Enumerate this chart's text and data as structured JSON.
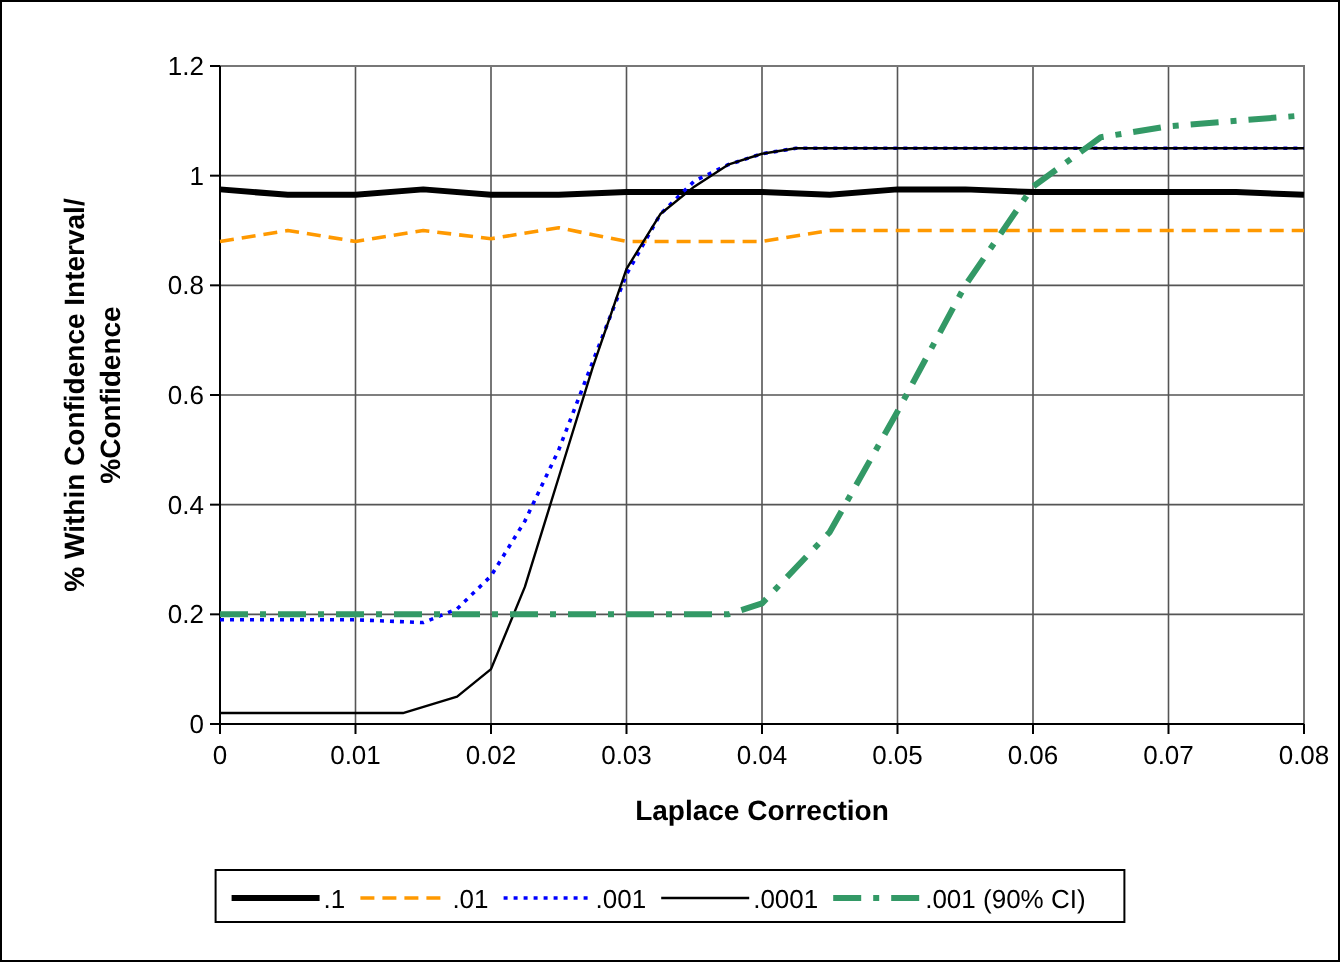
{
  "chart_data": {
    "type": "line",
    "xlabel": "Laplace Correction",
    "ylabel": "% Within Confidence Interval/ %Confidence",
    "xlim": [
      0,
      0.08
    ],
    "ylim": [
      0,
      1.2
    ],
    "xticks": [
      0,
      0.01,
      0.02,
      0.03,
      0.04,
      0.05,
      0.06,
      0.07,
      0.08
    ],
    "yticks": [
      0,
      0.2,
      0.4,
      0.6,
      0.8,
      1,
      1.2
    ],
    "grid": true,
    "legend": "bottom",
    "marker": "none",
    "x": [
      0,
      0.005,
      0.01,
      0.015,
      0.02,
      0.025,
      0.03,
      0.035,
      0.04,
      0.045,
      0.05,
      0.055,
      0.06,
      0.065,
      0.07,
      0.075,
      0.08
    ],
    "series": [
      {
        "name": ".1",
        "color": "#000000",
        "line_style": "solid",
        "values": [
          0.975,
          0.965,
          0.965,
          0.975,
          0.965,
          0.965,
          0.97,
          0.97,
          0.97,
          0.965,
          0.975,
          0.975,
          0.97,
          0.97,
          0.97,
          0.97,
          0.965
        ]
      },
      {
        "name": ".01",
        "color": "#ff9900",
        "line_style": "dashed",
        "values": [
          0.88,
          0.9,
          0.88,
          0.9,
          0.885,
          0.905,
          0.88,
          0.88,
          0.88,
          0.9,
          0.9,
          0.9,
          0.9,
          0.9,
          0.9,
          0.9,
          0.9
        ]
      },
      {
        "name": ".001",
        "color": "#0000ff",
        "line_style": "dotted",
        "x": [
          0,
          0.005,
          0.01,
          0.015,
          0.0175,
          0.02,
          0.0225,
          0.025,
          0.0275,
          0.03,
          0.0325,
          0.035,
          0.0375,
          0.04,
          0.0425,
          0.05,
          0.06,
          0.07,
          0.08
        ],
        "values": [
          0.19,
          0.19,
          0.19,
          0.185,
          0.21,
          0.27,
          0.37,
          0.5,
          0.66,
          0.82,
          0.93,
          0.99,
          1.02,
          1.04,
          1.05,
          1.05,
          1.05,
          1.05,
          1.05
        ]
      },
      {
        "name": ".0001",
        "color": "#000000",
        "line_style": "solid",
        "x": [
          0,
          0.005,
          0.01,
          0.0135,
          0.0175,
          0.02,
          0.0225,
          0.025,
          0.0275,
          0.03,
          0.0325,
          0.035,
          0.0375,
          0.04,
          0.0425,
          0.05,
          0.06,
          0.07,
          0.08
        ],
        "values": [
          0.02,
          0.02,
          0.02,
          0.02,
          0.05,
          0.1,
          0.25,
          0.45,
          0.65,
          0.83,
          0.93,
          0.98,
          1.02,
          1.04,
          1.05,
          1.05,
          1.05,
          1.05,
          1.05
        ]
      },
      {
        "name": ".001 (90% CI)",
        "color": "#339966",
        "line_style": "dashed",
        "x": [
          0,
          0.01,
          0.02,
          0.03,
          0.0375,
          0.04,
          0.045,
          0.05,
          0.055,
          0.06,
          0.065,
          0.07,
          0.08
        ],
        "values": [
          0.2,
          0.2,
          0.2,
          0.2,
          0.2,
          0.22,
          0.35,
          0.57,
          0.8,
          0.98,
          1.07,
          1.09,
          1.11
        ]
      }
    ]
  }
}
